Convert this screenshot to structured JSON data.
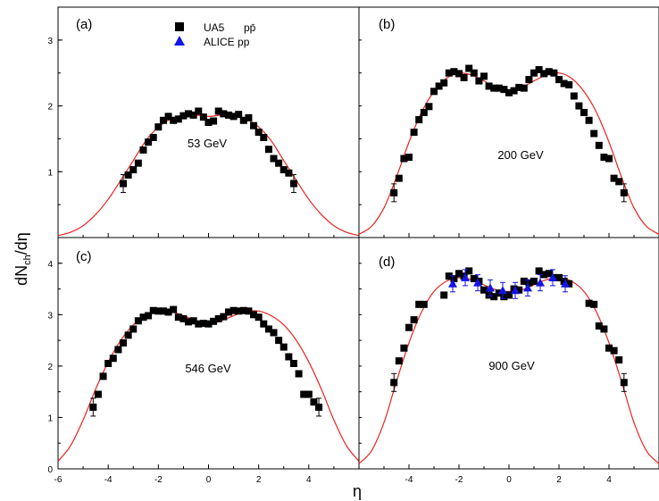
{
  "figure": {
    "ylabel": {
      "main": "dN",
      "sub": "ch",
      "tail": "/dη"
    },
    "xlabel": "η"
  },
  "legend": [
    {
      "marker": "square",
      "color": "#000000",
      "label": "UA5",
      "label_extra": "pp̄"
    },
    {
      "marker": "triangle",
      "color": "#1414e6",
      "label": "ALICE pp",
      "label_extra": ""
    }
  ],
  "chart_data": [
    {
      "type": "scatter",
      "panel": "(a)",
      "energy_label": "53 GeV",
      "xlim": [
        -6,
        6
      ],
      "ylim": [
        0,
        3.5
      ],
      "yticks": [
        1,
        2,
        3
      ],
      "fit_color": "#e8231f",
      "fit_curve": {
        "x": [
          -6,
          -5.5,
          -5,
          -4.5,
          -4,
          -3.5,
          -3,
          -2.5,
          -2,
          -1.5,
          -1,
          -0.5,
          0,
          0.5,
          1,
          1.5,
          2,
          2.5,
          3,
          3.5,
          4,
          4.5,
          5,
          5.5,
          6
        ],
        "y": [
          0.03,
          0.08,
          0.18,
          0.35,
          0.58,
          0.87,
          1.17,
          1.47,
          1.68,
          1.8,
          1.86,
          1.86,
          1.84,
          1.86,
          1.86,
          1.8,
          1.68,
          1.47,
          1.17,
          0.87,
          0.58,
          0.35,
          0.18,
          0.08,
          0.03
        ]
      },
      "series": [
        {
          "name": "UA5",
          "marker": "square",
          "color": "#000000",
          "x": [
            -3.4,
            -3.2,
            -3.0,
            -2.8,
            -2.6,
            -2.4,
            -2.2,
            -2.0,
            -1.8,
            -1.6,
            -1.4,
            -1.2,
            -1.0,
            -0.8,
            -0.6,
            -0.4,
            -0.2,
            0.0,
            0.2,
            0.4,
            0.6,
            0.8,
            1.0,
            1.2,
            1.4,
            1.6,
            1.8,
            2.0,
            2.2,
            2.4,
            2.6,
            2.8,
            3.0,
            3.2,
            3.4
          ],
          "y": [
            0.82,
            0.95,
            1.03,
            1.13,
            1.33,
            1.45,
            1.52,
            1.68,
            1.78,
            1.84,
            1.78,
            1.8,
            1.85,
            1.88,
            1.86,
            1.92,
            1.83,
            1.75,
            1.77,
            1.92,
            1.88,
            1.86,
            1.84,
            1.87,
            1.78,
            1.82,
            1.7,
            1.6,
            1.52,
            1.34,
            1.2,
            1.13,
            1.03,
            0.98,
            0.82
          ]
        }
      ]
    },
    {
      "type": "scatter",
      "panel": "(b)",
      "energy_label": "200 GeV",
      "xlim": [
        -6,
        6
      ],
      "ylim": [
        0,
        3.5
      ],
      "yticks": [],
      "fit_color": "#e8231f",
      "fit_curve": {
        "x": [
          -6,
          -5.5,
          -5,
          -4.5,
          -4,
          -3.5,
          -3,
          -2.5,
          -2,
          -1.5,
          -1,
          -0.5,
          0,
          0.5,
          1,
          1.5,
          2,
          2.5,
          3,
          3.5,
          4,
          4.5,
          5,
          5.5,
          6
        ],
        "y": [
          0.05,
          0.17,
          0.45,
          0.92,
          1.45,
          1.9,
          2.22,
          2.42,
          2.5,
          2.47,
          2.38,
          2.28,
          2.24,
          2.28,
          2.38,
          2.47,
          2.5,
          2.42,
          2.22,
          1.9,
          1.45,
          0.92,
          0.45,
          0.17,
          0.05
        ]
      },
      "series": [
        {
          "name": "UA5",
          "marker": "square",
          "color": "#000000",
          "x": [
            -4.6,
            -4.4,
            -4.2,
            -4.0,
            -3.8,
            -3.6,
            -3.4,
            -3.2,
            -3.0,
            -2.8,
            -2.6,
            -2.4,
            -2.2,
            -2.0,
            -1.8,
            -1.6,
            -1.4,
            -1.2,
            -1.0,
            -0.8,
            -0.6,
            -0.4,
            -0.2,
            0.0,
            0.2,
            0.4,
            0.6,
            0.8,
            1.0,
            1.2,
            1.4,
            1.6,
            1.8,
            2.0,
            2.2,
            2.4,
            2.6,
            2.8,
            3.0,
            3.2,
            3.4,
            3.6,
            3.8,
            4.0,
            4.2,
            4.4,
            4.6
          ],
          "y": [
            0.68,
            0.9,
            1.2,
            1.22,
            1.6,
            1.79,
            1.9,
            1.99,
            2.22,
            2.3,
            2.35,
            2.5,
            2.52,
            2.49,
            2.43,
            2.57,
            2.5,
            2.38,
            2.45,
            2.3,
            2.27,
            2.27,
            2.25,
            2.2,
            2.23,
            2.28,
            2.27,
            2.4,
            2.5,
            2.55,
            2.49,
            2.52,
            2.5,
            2.4,
            2.34,
            2.32,
            2.15,
            2.0,
            1.9,
            1.78,
            1.58,
            1.4,
            1.22,
            1.2,
            0.9,
            0.85,
            0.68
          ]
        }
      ]
    },
    {
      "type": "scatter",
      "panel": "(c)",
      "energy_label": "546 GeV",
      "xlim": [
        -6,
        6
      ],
      "ylim": [
        0,
        4.5
      ],
      "yticks": [
        0,
        1,
        2,
        3,
        4
      ],
      "xticks": [
        -6,
        -4,
        -2,
        0,
        2,
        4
      ],
      "fit_color": "#e8231f",
      "fit_curve": {
        "x": [
          -6,
          -5.5,
          -5,
          -4.5,
          -4,
          -3.5,
          -3,
          -2.5,
          -2,
          -1.5,
          -1,
          -0.5,
          0,
          0.5,
          1,
          1.5,
          2,
          2.5,
          3,
          3.5,
          4,
          4.5,
          5,
          5.5,
          6
        ],
        "y": [
          0.15,
          0.45,
          0.95,
          1.55,
          2.08,
          2.5,
          2.8,
          2.98,
          3.07,
          3.06,
          2.98,
          2.88,
          2.83,
          2.88,
          2.98,
          3.06,
          3.07,
          2.98,
          2.8,
          2.5,
          2.08,
          1.55,
          0.95,
          0.45,
          0.15
        ]
      },
      "series": [
        {
          "name": "UA5",
          "marker": "square",
          "color": "#000000",
          "x": [
            -4.6,
            -4.4,
            -4.2,
            -4.0,
            -3.8,
            -3.6,
            -3.4,
            -3.2,
            -3.0,
            -2.8,
            -2.6,
            -2.4,
            -2.2,
            -2.0,
            -1.8,
            -1.6,
            -1.4,
            -1.2,
            -1.0,
            -0.8,
            -0.6,
            -0.4,
            -0.2,
            0.0,
            0.2,
            0.4,
            0.6,
            0.8,
            1.0,
            1.2,
            1.4,
            1.6,
            1.8,
            2.0,
            2.2,
            2.4,
            2.6,
            2.8,
            3.0,
            3.2,
            3.4,
            3.6,
            3.8,
            4.0,
            4.2,
            4.4
          ],
          "y": [
            1.2,
            1.45,
            1.8,
            2.05,
            2.15,
            2.32,
            2.45,
            2.6,
            2.72,
            2.88,
            2.95,
            2.98,
            3.08,
            3.07,
            3.07,
            3.05,
            3.1,
            2.95,
            2.92,
            2.86,
            2.88,
            2.82,
            2.83,
            2.82,
            2.87,
            2.92,
            2.96,
            3.05,
            3.08,
            3.07,
            3.08,
            3.07,
            3.0,
            2.95,
            2.82,
            2.72,
            2.65,
            2.5,
            2.37,
            2.18,
            2.05,
            1.85,
            1.45,
            1.45,
            1.3,
            1.2
          ]
        }
      ]
    },
    {
      "type": "scatter",
      "panel": "(d)",
      "energy_label": "900 GeV",
      "xlim": [
        -6,
        6
      ],
      "ylim": [
        0,
        4.5
      ],
      "yticks": [],
      "xticks": [
        -4,
        -2,
        0,
        2,
        4
      ],
      "fit_color": "#e8231f",
      "fit_curve": {
        "x": [
          -6,
          -5.5,
          -5,
          -4.5,
          -4,
          -3.5,
          -3,
          -2.5,
          -2,
          -1.5,
          -1,
          -0.5,
          0,
          0.5,
          1,
          1.5,
          2,
          2.5,
          3,
          3.5,
          4,
          4.5,
          5,
          5.5,
          6
        ],
        "y": [
          0.1,
          0.35,
          0.9,
          1.7,
          2.45,
          3.05,
          3.45,
          3.65,
          3.72,
          3.68,
          3.58,
          3.48,
          3.45,
          3.48,
          3.58,
          3.68,
          3.72,
          3.65,
          3.45,
          3.05,
          2.45,
          1.7,
          0.9,
          0.35,
          0.1
        ]
      },
      "series": [
        {
          "name": "UA5",
          "marker": "square",
          "color": "#000000",
          "x": [
            -4.6,
            -4.4,
            -4.2,
            -4.0,
            -3.8,
            -3.6,
            -3.4,
            -2.6,
            -2.4,
            -2.2,
            -2.0,
            -1.8,
            -1.6,
            -1.4,
            -1.2,
            -1.0,
            -0.8,
            -0.6,
            -0.4,
            -0.2,
            0.0,
            0.2,
            0.4,
            0.6,
            0.8,
            1.0,
            1.2,
            1.4,
            1.6,
            1.8,
            2.0,
            2.2,
            2.4,
            3.2,
            3.4,
            3.6,
            3.8,
            4.0,
            4.2,
            4.4,
            4.6
          ],
          "y": [
            1.68,
            2.1,
            2.35,
            2.75,
            2.9,
            3.2,
            3.2,
            3.38,
            3.75,
            3.7,
            3.8,
            3.75,
            3.85,
            3.7,
            3.65,
            3.48,
            3.38,
            3.35,
            3.42,
            3.35,
            3.38,
            3.5,
            3.48,
            3.65,
            3.62,
            3.65,
            3.85,
            3.78,
            3.8,
            3.72,
            3.72,
            3.65,
            3.6,
            3.22,
            3.2,
            2.78,
            2.72,
            2.35,
            2.3,
            2.12,
            1.68
          ]
        },
        {
          "name": "ALICE pp",
          "marker": "triangle",
          "color": "#1414e6",
          "x": [
            -2.25,
            -1.75,
            -1.25,
            -0.75,
            -0.25,
            0.25,
            0.75,
            1.25,
            1.75,
            2.25
          ],
          "y": [
            3.6,
            3.72,
            3.62,
            3.52,
            3.47,
            3.47,
            3.52,
            3.62,
            3.72,
            3.6
          ]
        }
      ]
    }
  ]
}
